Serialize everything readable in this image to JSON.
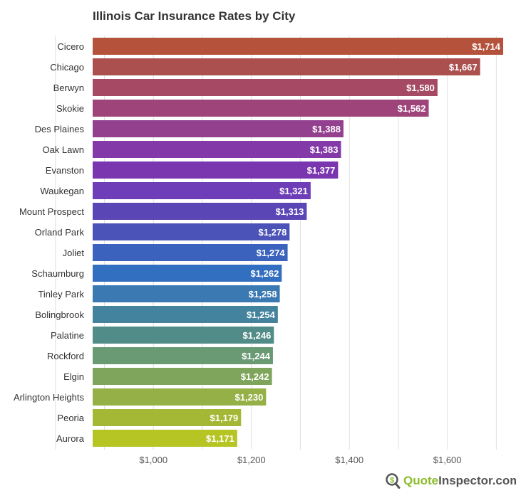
{
  "chart_data": {
    "type": "bar",
    "orientation": "horizontal",
    "title": "Illinois Car Insurance Rates by City",
    "categories": [
      "Cicero",
      "Chicago",
      "Berwyn",
      "Skokie",
      "Des Plaines",
      "Oak Lawn",
      "Evanston",
      "Waukegan",
      "Mount Prospect",
      "Orland Park",
      "Joliet",
      "Schaumburg",
      "Tinley Park",
      "Bolingbrook",
      "Palatine",
      "Rockford",
      "Elgin",
      "Arlington Heights",
      "Peoria",
      "Aurora"
    ],
    "values": [
      1714,
      1667,
      1580,
      1562,
      1388,
      1383,
      1377,
      1321,
      1313,
      1278,
      1274,
      1262,
      1258,
      1254,
      1246,
      1244,
      1242,
      1230,
      1179,
      1171
    ],
    "data_labels": [
      "$1,714",
      "$1,667",
      "$1,580",
      "$1,562",
      "$1,388",
      "$1,383",
      "$1,377",
      "$1,321",
      "$1,313",
      "$1,278",
      "$1,274",
      "$1,262",
      "$1,258",
      "$1,254",
      "$1,246",
      "$1,244",
      "$1,242",
      "$1,230",
      "$1,179",
      "$1,171"
    ],
    "colors": [
      "#b5523b",
      "#ac4f4f",
      "#a54964",
      "#9e447a",
      "#93408f",
      "#833aa8",
      "#7a36ae",
      "#6e3eb8",
      "#5b46b5",
      "#4b52b8",
      "#3b63be",
      "#336fc0",
      "#3b79b3",
      "#43839e",
      "#528c88",
      "#6a9a74",
      "#7ea55b",
      "#95b046",
      "#a5b835",
      "#b6c524"
    ],
    "xlim": [
      876,
      1714
    ],
    "x_ticks": [
      1000,
      1200,
      1400,
      1600
    ],
    "x_tick_labels": [
      "$1,000",
      "$1,200",
      "$1,400",
      "$1,600"
    ],
    "grid": true,
    "xlabel": "",
    "ylabel": ""
  },
  "logo": {
    "part1": "Quote",
    "part2": "Inspector.com",
    "icon": "dollar-magnifier-icon"
  }
}
